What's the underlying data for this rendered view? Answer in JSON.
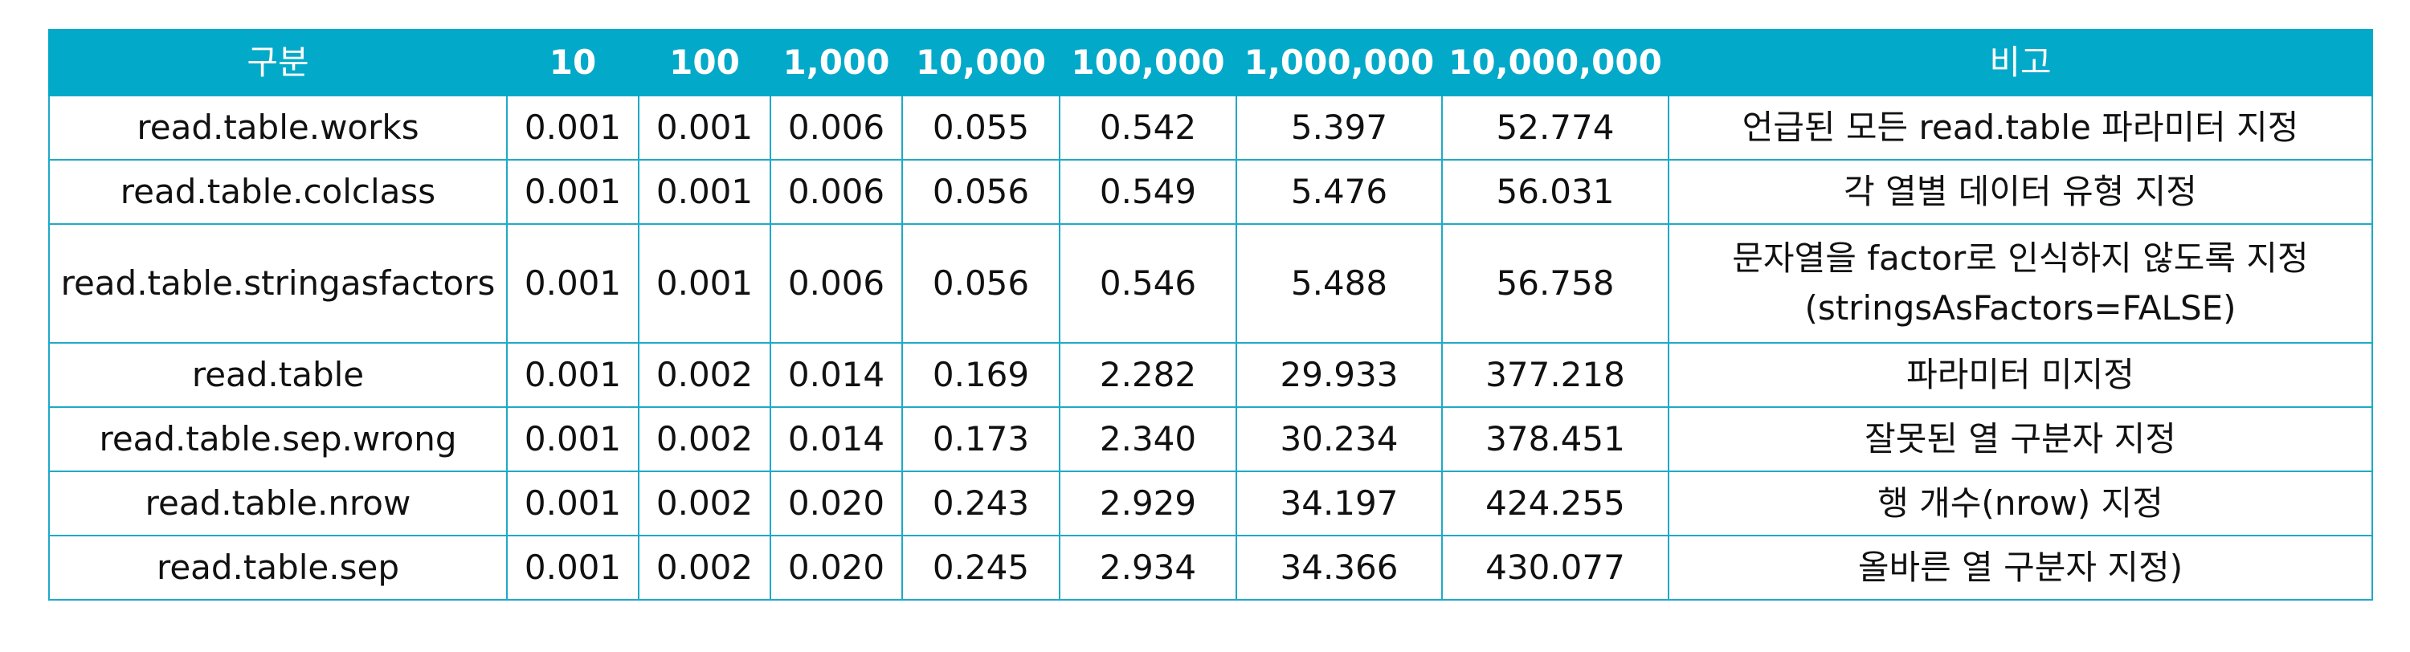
{
  "table": {
    "headers": [
      "구분",
      "10",
      "100",
      "1,000",
      "10,000",
      "100,000",
      "1,000,000",
      "10,000,000",
      "비고"
    ],
    "rows": [
      {
        "name": "read.table.works",
        "values": [
          "0.001",
          "0.001",
          "0.006",
          "0.055",
          "0.542",
          "5.397",
          "52.774"
        ],
        "note": [
          "언급된 모든 read.table 파라미터 지정"
        ]
      },
      {
        "name": "read.table.colclass",
        "values": [
          "0.001",
          "0.001",
          "0.006",
          "0.056",
          "0.549",
          "5.476",
          "56.031"
        ],
        "note": [
          "각 열별 데이터 유형 지정"
        ]
      },
      {
        "name": "read.table.stringasfactors",
        "values": [
          "0.001",
          "0.001",
          "0.006",
          "0.056",
          "0.546",
          "5.488",
          "56.758"
        ],
        "note": [
          "문자열을 factor로 인식하지 않도록 지정",
          "(stringsAsFactors=FALSE)"
        ]
      },
      {
        "name": "read.table",
        "values": [
          "0.001",
          "0.002",
          "0.014",
          "0.169",
          "2.282",
          "29.933",
          "377.218"
        ],
        "note": [
          "파라미터 미지정"
        ]
      },
      {
        "name": "read.table.sep.wrong",
        "values": [
          "0.001",
          "0.002",
          "0.014",
          "0.173",
          "2.340",
          "30.234",
          "378.451"
        ],
        "note": [
          "잘못된 열 구분자 지정"
        ]
      },
      {
        "name": "read.table.nrow",
        "values": [
          "0.001",
          "0.002",
          "0.020",
          "0.243",
          "2.929",
          "34.197",
          "424.255"
        ],
        "note": [
          "행 개수(nrow) 지정"
        ]
      },
      {
        "name": "read.table.sep",
        "values": [
          "0.001",
          "0.002",
          "0.020",
          "0.245",
          "2.934",
          "34.366",
          "430.077"
        ],
        "note": [
          "올바른 열 구분자 지정)"
        ]
      }
    ]
  },
  "colors": {
    "header_bg": "#03a9c9",
    "header_text": "#ffffff",
    "border": "#1fa9c9"
  }
}
